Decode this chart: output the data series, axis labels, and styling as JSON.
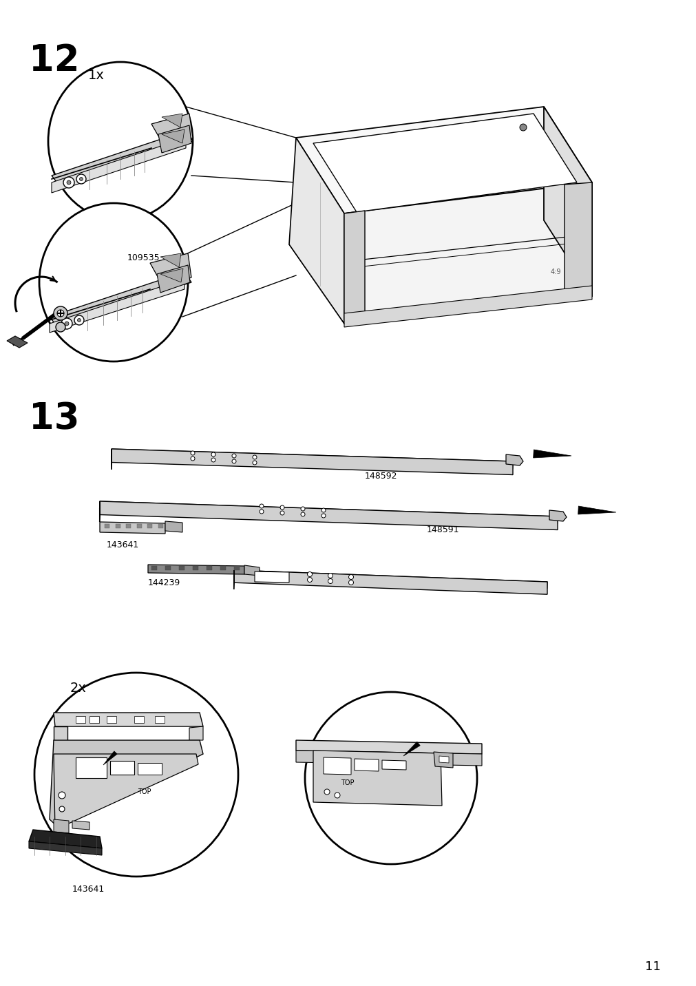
{
  "bg_color": "#ffffff",
  "step12_label": "12",
  "step13_label": "13",
  "page_number": "11",
  "label_1x": "1x",
  "label_2x": "2x",
  "part_109535": "109535",
  "part_148592": "148592",
  "part_148591": "148591",
  "part_143641_1": "143641",
  "part_144239": "144239",
  "part_143641_2": "143641",
  "step_fs": 38,
  "page_fs": 13,
  "pid_fs": 9,
  "qty_fs": 14,
  "lw_thin": 0.7,
  "lw_med": 1.2,
  "lw_thick": 2.0,
  "gray_light": "#f0f0f0",
  "gray_mid": "#d8d8d8",
  "gray_dark": "#aaaaaa",
  "black": "#000000",
  "white": "#ffffff"
}
